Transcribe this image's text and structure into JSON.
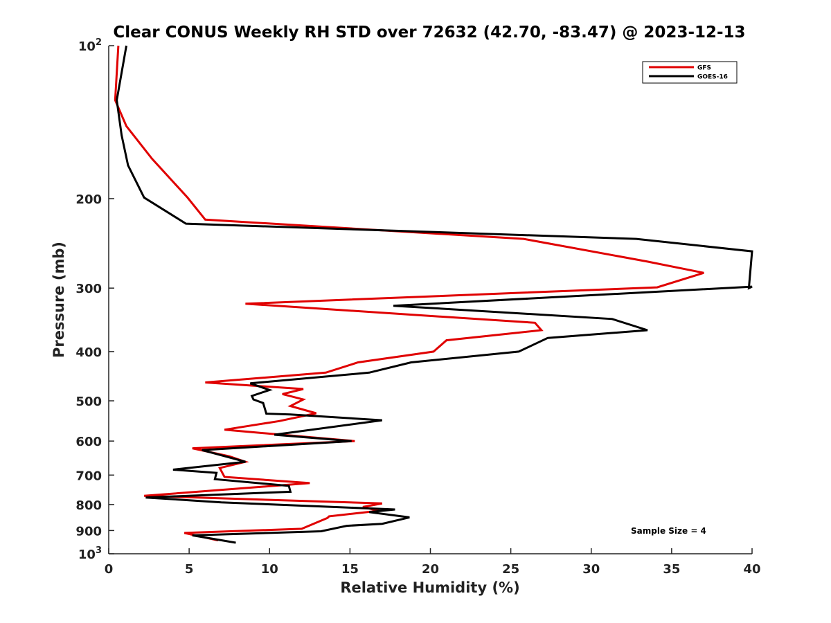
{
  "chart_data": {
    "type": "line",
    "title": "Clear CONUS Weekly RH STD over 72632 (42.70, -83.47) @ 2023-12-13",
    "xlabel": "Relative Humidity (%)",
    "ylabel": "Pressure (mb)",
    "xlim": [
      0,
      40
    ],
    "ylim": [
      1000,
      100
    ],
    "y_scale": "log",
    "y_reversed": true,
    "x_ticks": [
      0,
      5,
      10,
      15,
      20,
      25,
      30,
      35,
      40
    ],
    "x_tick_labels": [
      "0",
      "5",
      "10",
      "15",
      "20",
      "25",
      "30",
      "35",
      "40"
    ],
    "y_ticks": [
      100,
      200,
      300,
      400,
      500,
      600,
      700,
      800,
      900,
      1000
    ],
    "y_tick_labels": [
      {
        "base": "10",
        "exp": "2"
      },
      {
        "base": "200",
        "exp": ""
      },
      {
        "base": "300",
        "exp": ""
      },
      {
        "base": "400",
        "exp": ""
      },
      {
        "base": "500",
        "exp": ""
      },
      {
        "base": "600",
        "exp": ""
      },
      {
        "base": "700",
        "exp": ""
      },
      {
        "base": "800",
        "exp": ""
      },
      {
        "base": "900",
        "exp": ""
      },
      {
        "base": "10",
        "exp": "3"
      }
    ],
    "grid": false,
    "legend_position": "top-right",
    "annotation": "Sample Size = 4",
    "series": [
      {
        "name": "GFS",
        "color": "#e00000",
        "points": [
          [
            0.6,
            100
          ],
          [
            0.4,
            128
          ],
          [
            1.1,
            144
          ],
          [
            2.7,
            167
          ],
          [
            4.9,
            199
          ],
          [
            6.0,
            220
          ],
          [
            25.8,
            240
          ],
          [
            33.5,
            266
          ],
          [
            37.0,
            280
          ],
          [
            34.1,
            299
          ],
          [
            8.5,
            322
          ],
          [
            26.5,
            351
          ],
          [
            26.9,
            363
          ],
          [
            21.0,
            380
          ],
          [
            20.2,
            400
          ],
          [
            15.5,
            420
          ],
          [
            13.5,
            440
          ],
          [
            6.0,
            460
          ],
          [
            12.1,
            474
          ],
          [
            10.8,
            485
          ],
          [
            12.1,
            497
          ],
          [
            11.3,
            512
          ],
          [
            12.9,
            529
          ],
          [
            10.6,
            548
          ],
          [
            7.2,
            570
          ],
          [
            15.3,
            600
          ],
          [
            5.2,
            620
          ],
          [
            7.5,
            643
          ],
          [
            8.5,
            659
          ],
          [
            6.9,
            678
          ],
          [
            7.2,
            706
          ],
          [
            12.5,
            726
          ],
          [
            2.2,
            769
          ],
          [
            17.0,
            796
          ],
          [
            15.8,
            809
          ],
          [
            16.8,
            823
          ],
          [
            13.7,
            844
          ],
          [
            13.6,
            850
          ],
          [
            12.0,
            893
          ],
          [
            4.7,
            910
          ],
          [
            6.8,
            941
          ]
        ]
      },
      {
        "name": "GOES-16",
        "color": "#000000",
        "points": [
          [
            1.1,
            100
          ],
          [
            0.5,
            128
          ],
          [
            0.8,
            150
          ],
          [
            1.2,
            172
          ],
          [
            2.2,
            199
          ],
          [
            4.8,
            224
          ],
          [
            32.8,
            240
          ],
          [
            40.0,
            254
          ],
          [
            39.8,
            300
          ],
          [
            40.0,
            298
          ],
          [
            17.7,
            325
          ],
          [
            31.3,
            345
          ],
          [
            33.5,
            363
          ],
          [
            27.3,
            376
          ],
          [
            25.5,
            400
          ],
          [
            18.8,
            420
          ],
          [
            16.2,
            440
          ],
          [
            8.8,
            462
          ],
          [
            10.0,
            476
          ],
          [
            8.9,
            489
          ],
          [
            9.0,
            497
          ],
          [
            9.6,
            505
          ],
          [
            9.8,
            530
          ],
          [
            11.3,
            532
          ],
          [
            17.0,
            546
          ],
          [
            10.3,
            583
          ],
          [
            15.1,
            600
          ],
          [
            5.8,
            625
          ],
          [
            8.5,
            659
          ],
          [
            4.0,
            683
          ],
          [
            6.7,
            693
          ],
          [
            6.6,
            713
          ],
          [
            11.2,
            735
          ],
          [
            11.3,
            755
          ],
          [
            2.3,
            775
          ],
          [
            7.0,
            792
          ],
          [
            17.8,
            818
          ],
          [
            16.2,
            828
          ],
          [
            18.7,
            848
          ],
          [
            17.0,
            873
          ],
          [
            14.8,
            881
          ],
          [
            13.2,
            903
          ],
          [
            5.2,
            920
          ],
          [
            7.9,
            951
          ]
        ]
      }
    ]
  }
}
